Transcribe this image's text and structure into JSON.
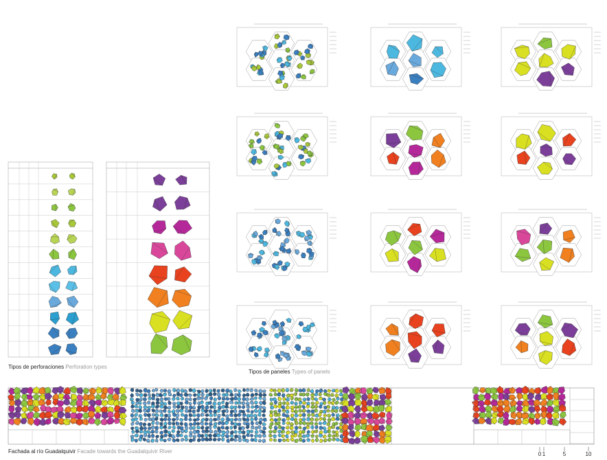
{
  "perforation_types": {
    "title": "Tipos de perforaciones",
    "subtitle": "Perforation types"
  },
  "panel_types": {
    "title": "Tipos de paneles",
    "subtitle": "Types of panels"
  },
  "facade": {
    "title": "Fachada al río Guadalquivir",
    "subtitle": "Facade towards the Guadalquivir River"
  },
  "scale": {
    "labels": [
      "0",
      "1",
      "5",
      "10"
    ]
  }
}
